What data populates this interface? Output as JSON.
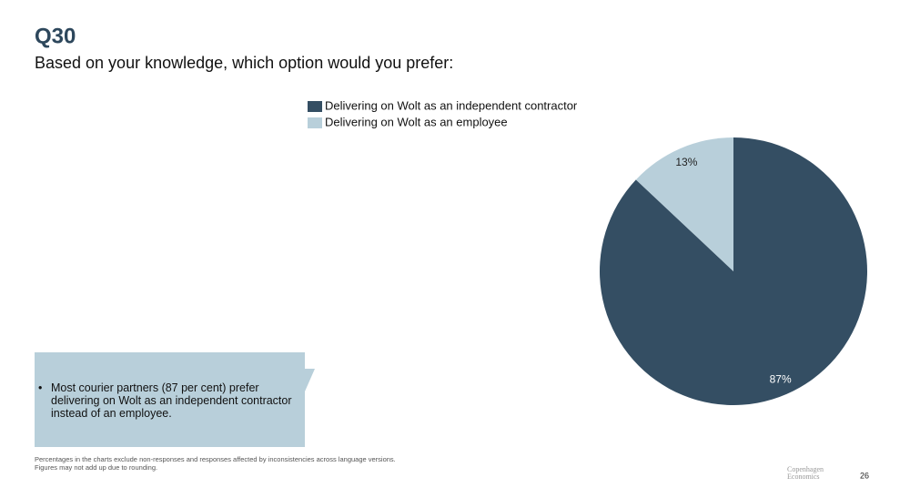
{
  "chart_data": {
    "type": "pie",
    "title": "Q30",
    "subtitle": "Based on your knowledge, which option would you prefer:",
    "series": [
      {
        "name": "Delivering on Wolt as an independent contractor",
        "color": "#344e63"
      },
      {
        "name": "Delivering on Wolt as an employee",
        "color": "#b8cfda"
      }
    ],
    "values": [
      87,
      13
    ],
    "value_labels": [
      "87%",
      "13%"
    ]
  },
  "slide": {
    "callout": "Most courier partners (87 per cent) prefer delivering on Wolt as an independent contractor instead of an employee.",
    "footnote": [
      "Percentages in the charts exclude non-responses and responses affected by inconsistencies across language versions.",
      "Figures may not add up due to rounding."
    ],
    "logo": [
      "Copenhagen",
      "Economics"
    ],
    "page_number": "26"
  }
}
